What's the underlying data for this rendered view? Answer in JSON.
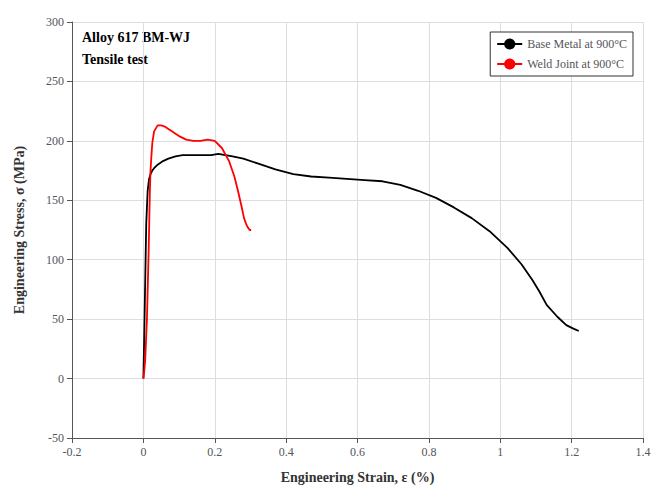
{
  "chart_data": {
    "type": "line",
    "title": "",
    "xlabel": "Engineering Strain, ε (%)",
    "ylabel": "Engineering Stress, σ (MPa)",
    "annotations": [
      "Alloy 617 BM-WJ",
      "Tensile test"
    ],
    "xlim": [
      -0.2,
      1.4
    ],
    "ylim": [
      -50,
      300
    ],
    "xticks": [
      -0.2,
      0,
      0.2,
      0.4,
      0.6,
      0.8,
      1.0,
      1.2,
      1.4
    ],
    "yticks": [
      -50,
      0,
      50,
      100,
      150,
      200,
      250,
      300
    ],
    "grid": true,
    "legend": "upper right",
    "series": [
      {
        "name": "Base Metal at 900°C",
        "color": "black",
        "x": [
          0.0,
          0.002,
          0.005,
          0.008,
          0.012,
          0.016,
          0.02,
          0.025,
          0.03,
          0.04,
          0.055,
          0.07,
          0.09,
          0.11,
          0.13,
          0.15,
          0.17,
          0.19,
          0.21,
          0.23,
          0.25,
          0.28,
          0.32,
          0.37,
          0.42,
          0.47,
          0.52,
          0.57,
          0.62,
          0.67,
          0.72,
          0.77,
          0.82,
          0.87,
          0.92,
          0.97,
          1.02,
          1.06,
          1.09,
          1.11,
          1.13,
          1.16,
          1.185,
          1.205,
          1.22
        ],
        "values": [
          0,
          30,
          80,
          130,
          158,
          168,
          172,
          175,
          177,
          180,
          183,
          185,
          187,
          188,
          188,
          188,
          188,
          188,
          189,
          188,
          187,
          185,
          181,
          176,
          172,
          170,
          169,
          168,
          167,
          166,
          163,
          158,
          152,
          144,
          135,
          124,
          110,
          96,
          83,
          73,
          62,
          52,
          45,
          42,
          40
        ]
      },
      {
        "name": "Weld Joint at 900°C",
        "color": "red",
        "x": [
          0.0,
          0.002,
          0.005,
          0.01,
          0.015,
          0.018,
          0.02,
          0.022,
          0.025,
          0.03,
          0.04,
          0.05,
          0.06,
          0.07,
          0.08,
          0.09,
          0.1,
          0.12,
          0.14,
          0.16,
          0.18,
          0.2,
          0.22,
          0.24,
          0.255,
          0.265,
          0.275,
          0.282,
          0.288,
          0.293,
          0.298,
          0.302
        ],
        "values": [
          0,
          5,
          15,
          50,
          110,
          155,
          175,
          185,
          198,
          208,
          213,
          213,
          212,
          210,
          208,
          206,
          204,
          201,
          200,
          200,
          201,
          200,
          194,
          183,
          170,
          158,
          145,
          135,
          130,
          127,
          125,
          125
        ]
      }
    ]
  }
}
